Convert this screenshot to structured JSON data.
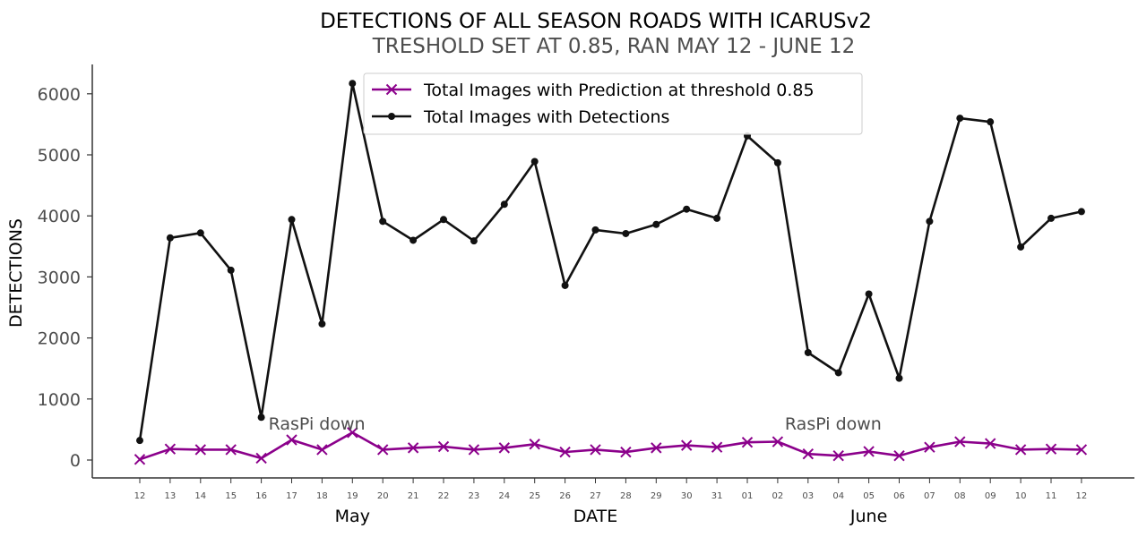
{
  "chart_data": {
    "type": "line",
    "title": "DETECTIONS OF ALL SEASON ROADS WITH ICARUSv2",
    "subtitle": "TRESHOLD SET AT 0.85, RAN MAY 12 - JUNE 12",
    "xlabel": "DATE",
    "ylabel": "DETECTIONS",
    "ylim": [
      -300,
      6500
    ],
    "yticks": [
      0,
      1000,
      2000,
      3000,
      4000,
      5000,
      6000
    ],
    "categories": [
      "12",
      "13",
      "14",
      "15",
      "16",
      "17",
      "18",
      "19",
      "20",
      "21",
      "22",
      "23",
      "24",
      "25",
      "26",
      "27",
      "28",
      "29",
      "30",
      "31",
      "01",
      "02",
      "03",
      "04",
      "05",
      "06",
      "07",
      "08",
      "09",
      "10",
      "11",
      "12"
    ],
    "month_labels": [
      {
        "text": "May",
        "at": "19"
      },
      {
        "text": "DATE",
        "at": "27"
      },
      {
        "text": "June",
        "at": "05"
      }
    ],
    "series": [
      {
        "name": "Total Images with Prediction at threshold 0.85",
        "color": "#8b008b",
        "marker": "x",
        "values": [
          10,
          180,
          170,
          170,
          30,
          330,
          170,
          450,
          170,
          200,
          220,
          170,
          200,
          260,
          130,
          170,
          130,
          200,
          240,
          210,
          290,
          300,
          100,
          70,
          140,
          70,
          210,
          300,
          270,
          170,
          180,
          170
        ]
      },
      {
        "name": "Total Images with Detections",
        "color": "#111111",
        "marker": "dot",
        "values": [
          320,
          3640,
          3720,
          3110,
          700,
          3940,
          2230,
          6170,
          3910,
          3600,
          3940,
          3590,
          4190,
          4890,
          2860,
          3770,
          3710,
          3860,
          4110,
          3960,
          5310,
          4870,
          1760,
          1430,
          2720,
          1340,
          3910,
          5600,
          5540,
          3490,
          3960,
          4070
        ]
      }
    ],
    "annotations": [
      {
        "text": "RasPi down",
        "at_index": 4
      },
      {
        "text": "RasPi down",
        "at_index": 21
      }
    ],
    "legend": "top-center",
    "grid": false
  }
}
